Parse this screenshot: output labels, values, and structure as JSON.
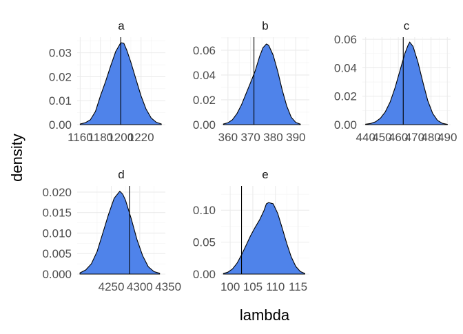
{
  "chart_data": {
    "type": "area",
    "xlabel": "lambda",
    "ylabel": "density",
    "grid": true,
    "facets": [
      {
        "name": "a",
        "xlim": [
          1157,
          1244
        ],
        "ylim": [
          0,
          0.0365
        ],
        "xticks": [
          1160,
          1180,
          1200,
          1220
        ],
        "yticks": [
          0.0,
          0.01,
          0.02,
          0.03
        ],
        "ytick_labels": [
          "0.00",
          "0.01",
          "0.02",
          "0.03"
        ],
        "vline": 1200,
        "curve": {
          "x": [
            1160,
            1165,
            1170,
            1175,
            1180,
            1185,
            1190,
            1195,
            1200,
            1203,
            1206,
            1210,
            1215,
            1220,
            1225,
            1230,
            1235,
            1240
          ],
          "y": [
            0.0003,
            0.0008,
            0.002,
            0.0055,
            0.012,
            0.018,
            0.0245,
            0.0305,
            0.0342,
            0.034,
            0.031,
            0.026,
            0.019,
            0.012,
            0.0065,
            0.0028,
            0.001,
            0.0003
          ]
        }
      },
      {
        "name": "b",
        "xlim": [
          357,
          396
        ],
        "ylim": [
          0,
          0.0705
        ],
        "xticks": [
          360,
          370,
          380,
          390
        ],
        "yticks": [
          0.0,
          0.02,
          0.04,
          0.06
        ],
        "ytick_labels": [
          "0.00",
          "0.02",
          "0.04",
          "0.06"
        ],
        "vline": 371.5,
        "curve": {
          "x": [
            358,
            360,
            362,
            364,
            366,
            368,
            370,
            372,
            374,
            375.5,
            377,
            378,
            380,
            382,
            384,
            386,
            388,
            390,
            392
          ],
          "y": [
            0.0005,
            0.0015,
            0.004,
            0.009,
            0.016,
            0.025,
            0.034,
            0.043,
            0.055,
            0.062,
            0.065,
            0.064,
            0.056,
            0.043,
            0.028,
            0.015,
            0.006,
            0.0018,
            0.0004
          ]
        }
      },
      {
        "name": "c",
        "xlim": [
          438,
          492
        ],
        "ylim": [
          0,
          0.0615
        ],
        "xticks": [
          440,
          450,
          460,
          470,
          480,
          490
        ],
        "yticks": [
          0.0,
          0.02,
          0.04,
          0.06
        ],
        "ytick_labels": [
          "0.00",
          "0.02",
          "0.04",
          "0.06"
        ],
        "vline": 463,
        "curve": {
          "x": [
            440,
            443,
            446,
            449,
            452,
            455,
            458,
            461,
            464,
            466,
            467,
            469,
            472,
            475,
            478,
            481,
            484,
            487,
            490
          ],
          "y": [
            0.0003,
            0.0008,
            0.002,
            0.0045,
            0.009,
            0.016,
            0.026,
            0.038,
            0.05,
            0.056,
            0.058,
            0.055,
            0.044,
            0.03,
            0.017,
            0.008,
            0.003,
            0.0009,
            0.0002
          ]
        }
      },
      {
        "name": "d",
        "xlim": [
          4190,
          4345
        ],
        "ylim": [
          0,
          0.0215
        ],
        "xticks": [
          4250,
          4300,
          4350
        ],
        "yticks": [
          0.0,
          0.005,
          0.01,
          0.015,
          0.02
        ],
        "ytick_labels": [
          "0.000",
          "0.005",
          "0.010",
          "0.015",
          "0.020"
        ],
        "vline": 4282,
        "curve": {
          "x": [
            4195,
            4205,
            4215,
            4225,
            4235,
            4245,
            4255,
            4265,
            4270,
            4275,
            4285,
            4295,
            4305,
            4315,
            4325,
            4335
          ],
          "y": [
            0.0003,
            0.001,
            0.0025,
            0.0055,
            0.01,
            0.0145,
            0.0185,
            0.0202,
            0.0195,
            0.018,
            0.0135,
            0.0085,
            0.0045,
            0.0018,
            0.0006,
            0.0002
          ]
        }
      },
      {
        "name": "e",
        "xlim": [
          98,
          117.5
        ],
        "ylim": [
          0,
          0.138
        ],
        "xticks": [
          100,
          105,
          110,
          115
        ],
        "yticks": [
          0.0,
          0.05,
          0.1
        ],
        "ytick_labels": [
          "0.00",
          "0.05",
          "0.10"
        ],
        "vline": 102.5,
        "curve": {
          "x": [
            98.5,
            99.5,
            100.5,
            101.5,
            102.5,
            103.5,
            104.5,
            105.5,
            106.5,
            107.5,
            108,
            108.5,
            109.5,
            110.5,
            111.5,
            112.5,
            113.5,
            114.5,
            115.5,
            116.5
          ],
          "y": [
            0.001,
            0.003,
            0.008,
            0.017,
            0.03,
            0.045,
            0.06,
            0.073,
            0.085,
            0.1,
            0.11,
            0.112,
            0.11,
            0.095,
            0.072,
            0.048,
            0.027,
            0.012,
            0.004,
            0.001
          ]
        }
      }
    ]
  }
}
